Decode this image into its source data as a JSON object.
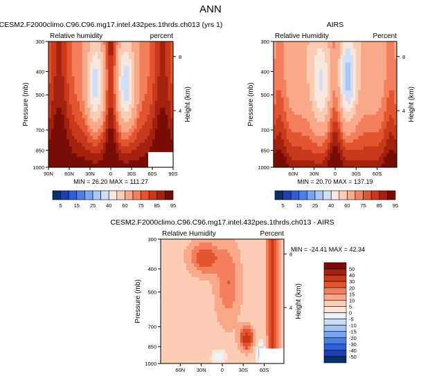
{
  "page_title": "ANN",
  "chart_data": [
    {
      "type": "heatmap",
      "title": "CESM2.F2000climo.C96.C96.mg17.intel.432pes.1thrds.ch013 (yrs 1)",
      "left_label": "Relative humidity",
      "right_label": "percent",
      "ylabel": "Pressure (mb)",
      "y2label": "Height (km)",
      "x_ticks": [
        "90N",
        "60N",
        "30N",
        "0",
        "30S",
        "60S",
        "90S"
      ],
      "y_ticks": [
        "300",
        "400",
        "500",
        "700",
        "850",
        "1000"
      ],
      "y2_ticks": [
        "8",
        "4"
      ],
      "stats": "MIN =  26.20   MAX = 111.27",
      "min": 26.2,
      "max": 111.27,
      "colorbar_labels": [
        "5",
        "15",
        "25",
        "40",
        "60",
        "75",
        "85",
        "95"
      ]
    },
    {
      "type": "heatmap",
      "title": "AIRS",
      "left_label": "Relative Humidity",
      "right_label": "Percent",
      "ylabel": "Pressure (mb)",
      "y2label": "Height (km)",
      "x_ticks": [
        "60N",
        "30N",
        "0",
        "30S",
        "60S"
      ],
      "y_ticks": [
        "300",
        "400",
        "500",
        "700",
        "850",
        "1000"
      ],
      "y2_ticks": [
        "8",
        "4"
      ],
      "stats": "MIN =  20.70   MAX = 137.19",
      "min": 20.7,
      "max": 137.19,
      "colorbar_labels": [
        "5",
        "15",
        "25",
        "40",
        "60",
        "75",
        "85",
        "95"
      ]
    },
    {
      "type": "heatmap",
      "title": "CESM2.F2000climo.C96.C96.mg17.intel.432pes.1thrds.ch013 - AIRS",
      "left_label": "Relative Humidity",
      "right_label": "Percent",
      "ylabel": "Pressure (mb)",
      "y2label": "Height (km)",
      "x_ticks": [
        "60N",
        "30N",
        "0",
        "30S",
        "60S"
      ],
      "y_ticks": [
        "300",
        "400",
        "500",
        "700",
        "850",
        "1000"
      ],
      "y2_ticks": [
        "8",
        "4"
      ],
      "stats": "MIN = -24.41   MAX =  42.34",
      "min": -24.41,
      "max": 42.34,
      "colorbar_labels": [
        "50",
        "40",
        "30",
        "20",
        "15",
        "10",
        "5",
        "0",
        "-5",
        "-10",
        "-15",
        "-20",
        "-30",
        "-40",
        "-50"
      ]
    }
  ],
  "colors": {
    "abs_scale": [
      "#08306b",
      "#1f3fb0",
      "#2e5fd6",
      "#4a7fe6",
      "#7aa4ef",
      "#a9c6f5",
      "#cfdff8",
      "#f7e7df",
      "#fbcdb4",
      "#f9a98a",
      "#f37f5c",
      "#e3552f",
      "#c9381b",
      "#a4200f",
      "#7a0e07"
    ],
    "diff_scale": [
      "#7a0e07",
      "#a4200f",
      "#c9381b",
      "#e3552f",
      "#f37f5c",
      "#f9a98a",
      "#fbcdb4",
      "#fde6d8",
      "#eaf2fc",
      "#c9dcf6",
      "#a3c2f0",
      "#7aa4ef",
      "#4a7fe6",
      "#2e5fd6",
      "#1f3fb0",
      "#08306b"
    ]
  }
}
